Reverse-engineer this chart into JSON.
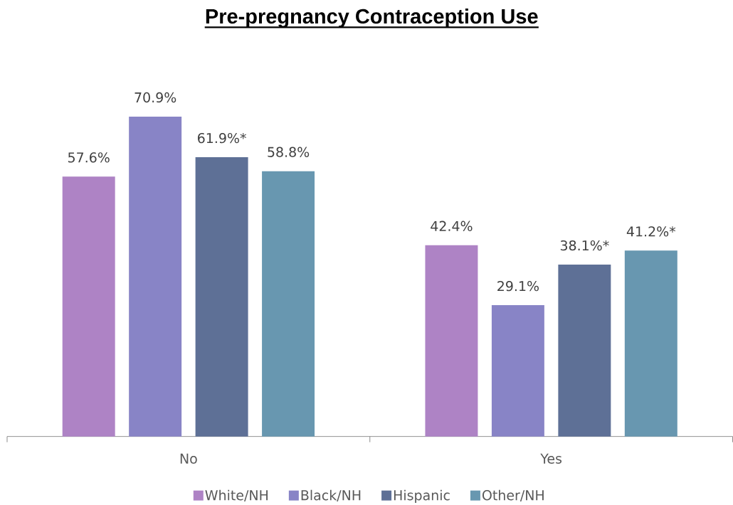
{
  "chart_data": {
    "type": "bar",
    "title": "Pre-pregnancy Contraception Use",
    "categories": [
      "No",
      "Yes"
    ],
    "series": [
      {
        "name": "White/NH",
        "color": "#ae83c5",
        "values": [
          57.6,
          42.4
        ],
        "value_labels": [
          "57.6%",
          "42.4%"
        ]
      },
      {
        "name": "Black/NH",
        "color": "#8884c6",
        "values": [
          70.9,
          29.1
        ],
        "value_labels": [
          "70.9%",
          "29.1%"
        ]
      },
      {
        "name": "Hispanic",
        "color": "#5e7096",
        "values": [
          61.9,
          38.1
        ],
        "value_labels": [
          "61.9%*",
          "38.1%*"
        ]
      },
      {
        "name": "Other/NH",
        "color": "#6897b0",
        "values": [
          58.8,
          41.2
        ],
        "value_labels": [
          "58.8%",
          "41.2%*"
        ]
      }
    ],
    "legend": "bottom"
  }
}
